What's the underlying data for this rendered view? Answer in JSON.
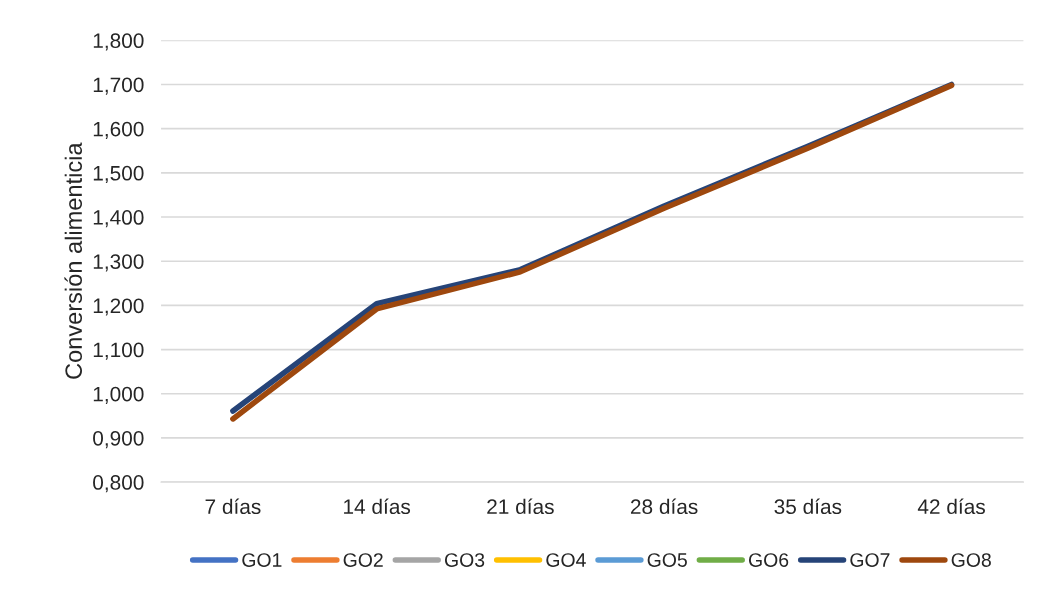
{
  "chart_data": {
    "type": "line",
    "ylabel": "Conversión alimenticia",
    "categories": [
      "7 días",
      "14 días",
      "21 días",
      "28 días",
      "35 días",
      "42 días"
    ],
    "series": [
      {
        "name": "GO1",
        "color": "#4472c4",
        "values": [
          null,
          null,
          null,
          null,
          null,
          null
        ]
      },
      {
        "name": "GO2",
        "color": "#ed7d31",
        "values": [
          null,
          null,
          null,
          null,
          null,
          null
        ]
      },
      {
        "name": "GO3",
        "color": "#a5a5a5",
        "values": [
          null,
          null,
          null,
          null,
          null,
          null
        ]
      },
      {
        "name": "GO4",
        "color": "#ffc000",
        "values": [
          null,
          null,
          null,
          null,
          null,
          null
        ]
      },
      {
        "name": "GO5",
        "color": "#5b9bd5",
        "values": [
          null,
          null,
          null,
          null,
          null,
          null
        ]
      },
      {
        "name": "GO6",
        "color": "#70ad47",
        "values": [
          null,
          null,
          null,
          null,
          null,
          null
        ]
      },
      {
        "name": "GO7",
        "color": "#264478",
        "values": [
          0.961,
          1.204,
          1.281,
          1.425,
          1.56,
          1.7
        ]
      },
      {
        "name": "GO8",
        "color": "#9e480e",
        "values": [
          0.943,
          1.192,
          1.276,
          1.42,
          1.556,
          1.698
        ]
      }
    ],
    "ylim": [
      0.8,
      1.8
    ],
    "yticks": [
      {
        "value": 0.8,
        "label": "0,800"
      },
      {
        "value": 0.9,
        "label": "0,900"
      },
      {
        "value": 1.0,
        "label": "1,000"
      },
      {
        "value": 1.1,
        "label": "1,100"
      },
      {
        "value": 1.2,
        "label": "1,200"
      },
      {
        "value": 1.3,
        "label": "1,300"
      },
      {
        "value": 1.4,
        "label": "1,400"
      },
      {
        "value": 1.5,
        "label": "1,500"
      },
      {
        "value": 1.6,
        "label": "1,600"
      },
      {
        "value": 1.7,
        "label": "1,700"
      },
      {
        "value": 1.8,
        "label": "1,800"
      }
    ],
    "grid": "y",
    "legend": "bottom",
    "marker": "none",
    "line_style": "solid"
  }
}
